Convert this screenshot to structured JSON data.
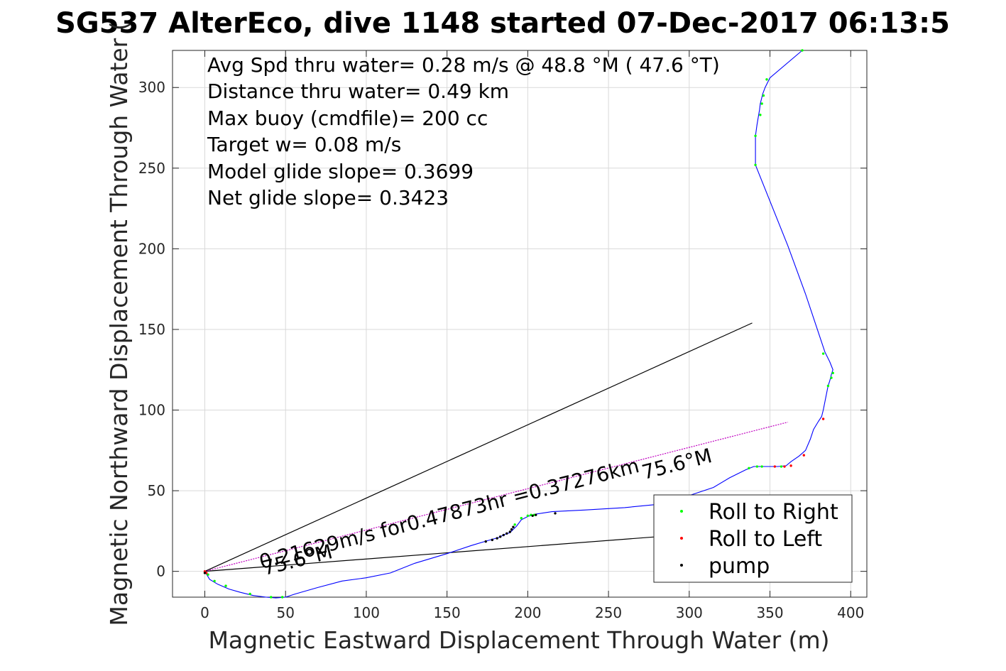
{
  "chart_data": {
    "type": "scatter",
    "title": "SG537 AlterEco, dive 1148 started 07-Dec-2017 06:13:5",
    "xlabel": "Magnetic Eastward Displacement Through Water (m)",
    "ylabel": "Magnetic Northward Displacement Through Water (",
    "xlim": [
      -20,
      410
    ],
    "ylim": [
      -16,
      323
    ],
    "xticks": [
      0,
      50,
      100,
      150,
      200,
      250,
      300,
      350,
      400
    ],
    "yticks": [
      0,
      50,
      100,
      150,
      200,
      250,
      300
    ],
    "grid": true,
    "annotations": [
      "Avg Spd thru water=  0.28 m/s @  48.8 °M ( 47.6 °T)",
      "Distance thru water=  0.49 km",
      "Max buoy (cmdfile)= 200 cc",
      "Target w= 0.08 m/s",
      "Model glide slope= 0.3699",
      "Net glide slope= 0.3423"
    ],
    "line_labels": {
      "current": "0.21629m/s for0.47873hr =0.37276km",
      "heading_lower": "75.6°M",
      "heading_upper": "75.6°M"
    },
    "reference_lines": [
      {
        "name": "upper",
        "x": [
          0,
          339
        ],
        "y": [
          0,
          154
        ],
        "color": "#000000"
      },
      {
        "name": "lower",
        "x": [
          0,
          300
        ],
        "y": [
          0,
          23
        ],
        "color": "#000000"
      },
      {
        "name": "current",
        "x": [
          0,
          361
        ],
        "y": [
          0,
          92.5
        ],
        "color": "#c000c0"
      }
    ],
    "series": [
      {
        "name": "track",
        "color": "#0000ff",
        "x": [
          0,
          3,
          8,
          15,
          22,
          30,
          38,
          44,
          50,
          56,
          70,
          85,
          100,
          115,
          130,
          150,
          165,
          175,
          182,
          186,
          189,
          191,
          193,
          196,
          200,
          205,
          215,
          235,
          260,
          280,
          300,
          315,
          325,
          335,
          340,
          345,
          350,
          355,
          360,
          363,
          368,
          372,
          375,
          377,
          380,
          382,
          383,
          386,
          387,
          388,
          389,
          387,
          384,
          372,
          361,
          341,
          341,
          342,
          343,
          343.5,
          344,
          345,
          345.5,
          347,
          350,
          370
        ],
        "y": [
          0,
          -5,
          -8,
          -11,
          -13,
          -15,
          -16,
          -16.5,
          -16,
          -14,
          -10,
          -6,
          -4,
          -1,
          5,
          11,
          16,
          19,
          21,
          23,
          24,
          26,
          28,
          32,
          34,
          35.5,
          37,
          38,
          39.5,
          41.5,
          47,
          52,
          58,
          63,
          65,
          65,
          65,
          65,
          65.5,
          68,
          71.5,
          75,
          82,
          88,
          93,
          96,
          100,
          115,
          118,
          122,
          125,
          130,
          136,
          172,
          202,
          252,
          270,
          277,
          283,
          286,
          290,
          294,
          296,
          300,
          306,
          323
        ]
      },
      {
        "name": "Roll to Right",
        "color": "#00ff00",
        "x": [
          2,
          6,
          13,
          28,
          41,
          48,
          192,
          196,
          200,
          202,
          204,
          337,
          342,
          345,
          357,
          383,
          386,
          388,
          389,
          341,
          341,
          344,
          345,
          346,
          348,
          370
        ],
        "y": [
          -2,
          -6,
          -9,
          -14,
          -16,
          -16,
          29,
          33,
          34.5,
          35,
          35,
          64,
          65,
          65,
          65,
          135,
          115,
          120,
          123,
          252,
          270,
          283,
          290,
          295,
          305,
          323
        ]
      },
      {
        "name": "Roll to Left",
        "color": "#ff0000",
        "x": [
          0,
          1,
          353,
          359,
          363,
          371,
          383
        ],
        "y": [
          0,
          -1,
          65,
          65,
          65.5,
          72,
          94.5
        ]
      },
      {
        "name": "pump",
        "color": "#000000",
        "x": [
          0,
          174,
          178,
          181,
          183,
          185,
          187,
          189,
          190,
          191,
          203,
          205,
          217
        ],
        "y": [
          -1,
          18.5,
          19.5,
          20.5,
          21.5,
          22.5,
          23.5,
          24.5,
          26,
          27.5,
          34.5,
          35,
          36
        ]
      }
    ],
    "legend": {
      "location": "bottom-right",
      "entries": [
        "Roll to Right",
        "Roll to Left",
        "pump"
      ]
    }
  }
}
